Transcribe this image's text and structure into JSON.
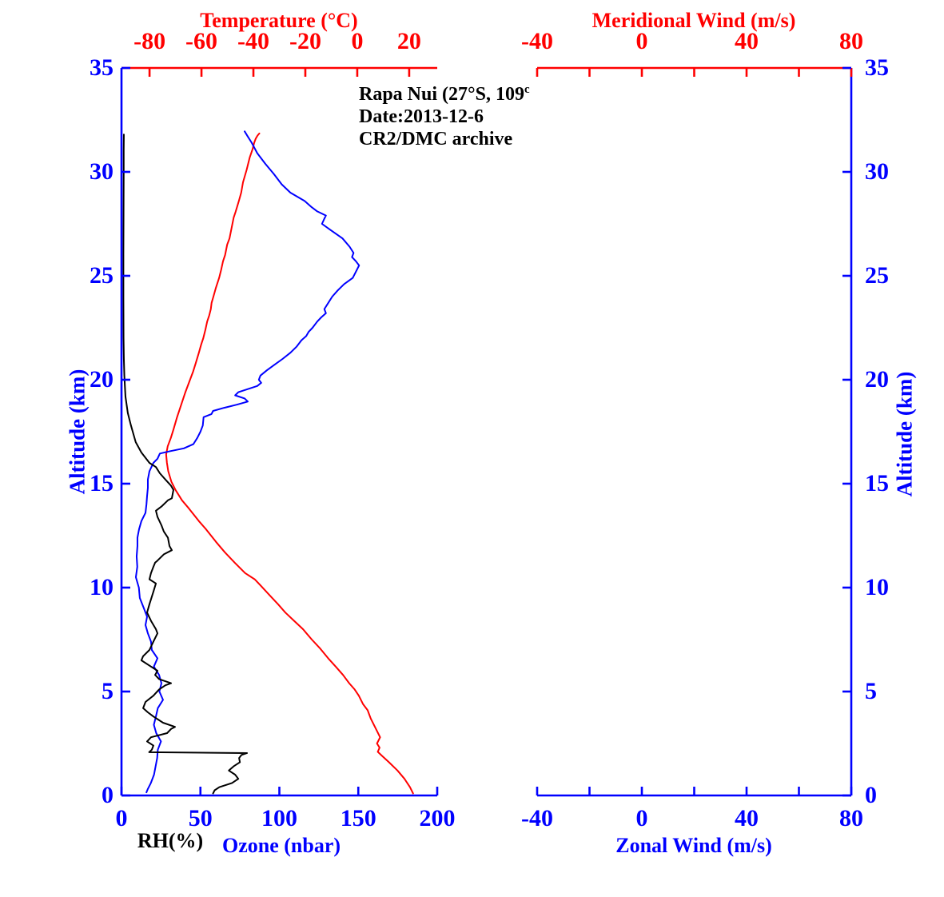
{
  "annotation": {
    "line1": "Rapa Nui (27°S, 109",
    "line1_sup": "c",
    "line2": "Date:2013-12-6",
    "line3": "CR2/DMC archive"
  },
  "colors": {
    "red": "#ff0000",
    "blue": "#0000ff",
    "black": "#000000",
    "background": "#ffffff"
  },
  "left_panel": {
    "top_axis": {
      "title": "Temperature (°C)",
      "ticks": [
        -80,
        -60,
        -40,
        -20,
        0,
        20
      ],
      "range": [
        -90.8,
        30.8
      ]
    },
    "bottom_axis": {
      "title": "Ozone (nbar)",
      "secondary_title": "RH(%)",
      "ticks": [
        0,
        50,
        100,
        150,
        200
      ],
      "range": [
        0,
        200
      ]
    },
    "left_axis": {
      "title": "Altitude (km)",
      "ticks": [
        0,
        5,
        10,
        15,
        20,
        25,
        30,
        35
      ],
      "range": [
        0,
        35
      ]
    }
  },
  "right_panel": {
    "top_axis": {
      "title": "Meridional Wind (m/s)",
      "tick_labels": [
        -40,
        0,
        40,
        80
      ],
      "minor_step": 20,
      "range": [
        -40,
        80
      ]
    },
    "bottom_axis": {
      "title": "Zonal Wind (m/s)",
      "tick_labels": [
        -40,
        0,
        40,
        80
      ],
      "minor_step": 20,
      "range": [
        -40,
        80
      ]
    },
    "right_axis": {
      "title": "Altitude (km)",
      "ticks": [
        0,
        5,
        10,
        15,
        20,
        25,
        30,
        35
      ],
      "range": [
        0,
        35
      ]
    }
  },
  "chart_data": {
    "type": "line",
    "title": "Rapa Nui ozonesonde profile 2013-12-6 (CR2/DMC archive)",
    "orientation": "vertical-profile",
    "y_axis": {
      "label": "Altitude (km)",
      "range": [
        0,
        35
      ]
    },
    "legend": "none",
    "grid": false,
    "series": [
      {
        "name": "Temperature",
        "unit": "°C",
        "color": "#ff0000",
        "axis": "temperature",
        "points": [
          [
            0.1,
            21.5
          ],
          [
            0.4,
            20.3
          ],
          [
            0.8,
            18.2
          ],
          [
            1.2,
            15.5
          ],
          [
            1.6,
            12.2
          ],
          [
            1.9,
            9.6
          ],
          [
            2.1,
            7.9
          ],
          [
            2.3,
            8.6
          ],
          [
            2.5,
            7.6
          ],
          [
            2.8,
            8.8
          ],
          [
            3.3,
            6.8
          ],
          [
            3.7,
            5.2
          ],
          [
            3.9,
            4.6
          ],
          [
            4.1,
            4.0
          ],
          [
            4.4,
            2.2
          ],
          [
            4.8,
            0.6
          ],
          [
            5.1,
            -1.0
          ],
          [
            5.4,
            -3.1
          ],
          [
            5.8,
            -5.5
          ],
          [
            6.2,
            -8.3
          ],
          [
            6.6,
            -11.2
          ],
          [
            7.1,
            -14.5
          ],
          [
            7.5,
            -17.5
          ],
          [
            8.0,
            -20.9
          ],
          [
            8.4,
            -24.3
          ],
          [
            8.8,
            -27.7
          ],
          [
            9.2,
            -30.5
          ],
          [
            9.6,
            -33.5
          ],
          [
            10.1,
            -37.2
          ],
          [
            10.4,
            -39.5
          ],
          [
            10.7,
            -43.2
          ],
          [
            11.2,
            -47.2
          ],
          [
            11.7,
            -51.0
          ],
          [
            12.2,
            -54.4
          ],
          [
            12.8,
            -58.2
          ],
          [
            13.2,
            -61.0
          ],
          [
            13.8,
            -64.8
          ],
          [
            14.2,
            -67.5
          ],
          [
            14.7,
            -70.0
          ],
          [
            15.1,
            -71.6
          ],
          [
            15.6,
            -72.8
          ],
          [
            16.0,
            -73.3
          ],
          [
            16.4,
            -73.6
          ],
          [
            16.8,
            -73.0
          ],
          [
            17.2,
            -71.8
          ],
          [
            17.6,
            -70.8
          ],
          [
            18.2,
            -69.4
          ],
          [
            18.8,
            -67.8
          ],
          [
            19.4,
            -66.2
          ],
          [
            20.0,
            -64.4
          ],
          [
            20.4,
            -63.2
          ],
          [
            20.8,
            -62.2
          ],
          [
            21.3,
            -61.0
          ],
          [
            21.7,
            -60.1
          ],
          [
            22.0,
            -59.3
          ],
          [
            22.4,
            -58.5
          ],
          [
            22.8,
            -57.8
          ],
          [
            23.1,
            -57.0
          ],
          [
            23.4,
            -56.4
          ],
          [
            23.7,
            -56.1
          ],
          [
            24.0,
            -55.4
          ],
          [
            24.4,
            -54.5
          ],
          [
            24.9,
            -53.2
          ],
          [
            25.3,
            -52.4
          ],
          [
            25.7,
            -51.7
          ],
          [
            26.0,
            -50.9
          ],
          [
            26.5,
            -50.1
          ],
          [
            26.8,
            -49.2
          ],
          [
            27.3,
            -48.4
          ],
          [
            27.8,
            -47.6
          ],
          [
            28.1,
            -46.8
          ],
          [
            28.6,
            -45.6
          ],
          [
            29.0,
            -44.7
          ],
          [
            29.5,
            -44.0
          ],
          [
            30.1,
            -42.6
          ],
          [
            30.7,
            -41.4
          ],
          [
            31.1,
            -40.3
          ],
          [
            31.4,
            -39.7
          ],
          [
            31.6,
            -39.1
          ],
          [
            31.75,
            -38.4
          ],
          [
            31.85,
            -37.7
          ]
        ]
      },
      {
        "name": "Ozone",
        "unit": "nbar",
        "color": "#0000ff",
        "axis": "ozone",
        "points": [
          [
            0.15,
            15.8
          ],
          [
            0.3,
            16.6
          ],
          [
            0.6,
            18.6
          ],
          [
            1.0,
            20.6
          ],
          [
            1.4,
            21.6
          ],
          [
            1.8,
            22.6
          ],
          [
            2.2,
            23.0
          ],
          [
            2.6,
            25.0
          ],
          [
            3.0,
            22.0
          ],
          [
            3.4,
            20.5
          ],
          [
            3.8,
            21.8
          ],
          [
            4.2,
            23.0
          ],
          [
            4.6,
            26.3
          ],
          [
            5.0,
            24.0
          ],
          [
            5.4,
            25.3
          ],
          [
            5.8,
            23.8
          ],
          [
            6.2,
            20.5
          ],
          [
            6.6,
            22.8
          ],
          [
            7.0,
            19.2
          ],
          [
            7.4,
            18.7
          ],
          [
            7.8,
            16.7
          ],
          [
            8.2,
            15.2
          ],
          [
            8.6,
            16.2
          ],
          [
            9.0,
            14.2
          ],
          [
            9.5,
            11.6
          ],
          [
            10.0,
            11.0
          ],
          [
            10.5,
            9.1
          ],
          [
            11.0,
            10.0
          ],
          [
            11.5,
            9.6
          ],
          [
            12.0,
            10.1
          ],
          [
            12.4,
            10.1
          ],
          [
            12.8,
            11.1
          ],
          [
            13.2,
            12.6
          ],
          [
            13.6,
            15.2
          ],
          [
            14.0,
            15.8
          ],
          [
            14.4,
            16.2
          ],
          [
            14.8,
            16.7
          ],
          [
            15.2,
            16.7
          ],
          [
            15.6,
            17.7
          ],
          [
            16.0,
            20.2
          ],
          [
            16.2,
            22.8
          ],
          [
            16.45,
            24.3
          ],
          [
            16.55,
            30.0
          ],
          [
            16.7,
            39.5
          ],
          [
            16.9,
            45.5
          ],
          [
            17.2,
            48.0
          ],
          [
            17.5,
            50.0
          ],
          [
            17.8,
            51.5
          ],
          [
            18.2,
            52.0
          ],
          [
            18.35,
            57.0
          ],
          [
            18.5,
            58.0
          ],
          [
            18.65,
            65.0
          ],
          [
            18.8,
            73.0
          ],
          [
            18.95,
            80.0
          ],
          [
            19.1,
            78.0
          ],
          [
            19.25,
            72.0
          ],
          [
            19.4,
            74.0
          ],
          [
            19.55,
            80.0
          ],
          [
            19.7,
            86.0
          ],
          [
            19.85,
            88.5
          ],
          [
            20.0,
            87.0
          ],
          [
            20.2,
            88.0
          ],
          [
            20.45,
            92.0
          ],
          [
            20.7,
            96.5
          ],
          [
            21.0,
            102.0
          ],
          [
            21.3,
            107.0
          ],
          [
            21.6,
            111.0
          ],
          [
            21.9,
            114.0
          ],
          [
            22.1,
            117.0
          ],
          [
            22.3,
            118.5
          ],
          [
            22.5,
            121.0
          ],
          [
            22.8,
            124.0
          ],
          [
            23.0,
            126.5
          ],
          [
            23.2,
            129.5
          ],
          [
            23.4,
            128.5
          ],
          [
            23.7,
            131.0
          ],
          [
            24.0,
            133.5
          ],
          [
            24.3,
            137.0
          ],
          [
            24.6,
            141.0
          ],
          [
            24.9,
            146.5
          ],
          [
            25.2,
            148.5
          ],
          [
            25.5,
            150.5
          ],
          [
            25.7,
            148.5
          ],
          [
            25.9,
            146.0
          ],
          [
            26.1,
            147.0
          ],
          [
            26.4,
            144.5
          ],
          [
            26.8,
            140.0
          ],
          [
            27.2,
            132.5
          ],
          [
            27.5,
            127.0
          ],
          [
            27.75,
            128.5
          ],
          [
            27.9,
            129.5
          ],
          [
            28.1,
            124.0
          ],
          [
            28.3,
            120.5
          ],
          [
            28.6,
            116.0
          ],
          [
            29.0,
            107.0
          ],
          [
            29.4,
            101.5
          ],
          [
            29.9,
            96.5
          ],
          [
            30.4,
            91.0
          ],
          [
            30.9,
            86.0
          ],
          [
            31.4,
            82.5
          ],
          [
            31.7,
            80.0
          ],
          [
            31.95,
            78.0
          ]
        ]
      },
      {
        "name": "RH",
        "unit": "%",
        "color": "#000000",
        "axis": "rh",
        "points": [
          [
            0.1,
            58
          ],
          [
            0.25,
            59
          ],
          [
            0.4,
            62
          ],
          [
            0.6,
            70
          ],
          [
            0.8,
            74
          ],
          [
            1.0,
            72
          ],
          [
            1.2,
            68
          ],
          [
            1.4,
            71
          ],
          [
            1.6,
            75
          ],
          [
            1.8,
            74.5
          ],
          [
            1.95,
            76
          ],
          [
            2.04,
            79.5
          ],
          [
            2.08,
            17.5
          ],
          [
            2.2,
            19.2
          ],
          [
            2.4,
            20.2
          ],
          [
            2.6,
            16.2
          ],
          [
            2.8,
            18.7
          ],
          [
            3.0,
            28.9
          ],
          [
            3.2,
            31.4
          ],
          [
            3.3,
            33.9
          ],
          [
            3.5,
            26.3
          ],
          [
            3.8,
            20.2
          ],
          [
            4.0,
            16.7
          ],
          [
            4.2,
            13.7
          ],
          [
            4.5,
            15.2
          ],
          [
            4.8,
            20.2
          ],
          [
            5.1,
            23.8
          ],
          [
            5.3,
            27.8
          ],
          [
            5.4,
            31.4
          ],
          [
            5.6,
            23.8
          ],
          [
            5.8,
            21.3
          ],
          [
            6.0,
            22.8
          ],
          [
            6.2,
            18.7
          ],
          [
            6.5,
            12.6
          ],
          [
            6.7,
            13.7
          ],
          [
            7.0,
            17.7
          ],
          [
            7.4,
            20.2
          ],
          [
            7.8,
            22.8
          ],
          [
            8.0,
            21.8
          ],
          [
            8.4,
            18.7
          ],
          [
            8.8,
            16.2
          ],
          [
            9.2,
            17.7
          ],
          [
            9.8,
            20.2
          ],
          [
            10.2,
            21.8
          ],
          [
            10.4,
            17.7
          ],
          [
            10.7,
            18.7
          ],
          [
            11.0,
            20.2
          ],
          [
            11.2,
            21.3
          ],
          [
            11.3,
            22.8
          ],
          [
            11.6,
            26.8
          ],
          [
            11.8,
            31.9
          ],
          [
            12.0,
            30.4
          ],
          [
            12.4,
            29.4
          ],
          [
            12.7,
            26.8
          ],
          [
            13.0,
            25.3
          ],
          [
            13.4,
            22.8
          ],
          [
            13.7,
            21.8
          ],
          [
            13.9,
            25.3
          ],
          [
            14.2,
            29.4
          ],
          [
            14.3,
            31.9
          ],
          [
            14.7,
            32.9
          ],
          [
            14.9,
            31.4
          ],
          [
            15.2,
            27.8
          ],
          [
            15.5,
            24.3
          ],
          [
            15.8,
            21.8
          ],
          [
            16.0,
            17.7
          ],
          [
            16.5,
            12.6
          ],
          [
            17.0,
            9.0
          ],
          [
            17.8,
            6.0
          ],
          [
            18.4,
            4.0
          ],
          [
            19.2,
            2.5
          ],
          [
            20.2,
            1.8
          ],
          [
            21.0,
            1.5
          ],
          [
            22.0,
            1.3
          ],
          [
            24.0,
            1.2
          ],
          [
            26.0,
            1.2
          ],
          [
            28.0,
            1.3
          ],
          [
            30.0,
            1.4
          ],
          [
            31.0,
            1.4
          ],
          [
            31.8,
            1.5
          ]
        ]
      },
      {
        "name": "Meridional Wind",
        "unit": "m/s",
        "color": "#ff0000",
        "axis": "wind",
        "points": []
      },
      {
        "name": "Zonal Wind",
        "unit": "m/s",
        "color": "#0000ff",
        "axis": "wind",
        "points": []
      }
    ],
    "x_axes": {
      "temperature": {
        "label": "Temperature (°C)",
        "range": [
          -90.8,
          30.8
        ]
      },
      "ozone": {
        "label": "Ozone (nbar)",
        "range": [
          0,
          200
        ]
      },
      "rh": {
        "label": "RH(%)",
        "range": [
          0,
          200
        ]
      },
      "wind": {
        "label": "Wind (m/s)",
        "range": [
          -40,
          80
        ]
      }
    }
  }
}
